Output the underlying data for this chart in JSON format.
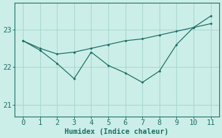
{
  "xlabel": "Humidex (Indice chaleur)",
  "background_color": "#cceee8",
  "grid_color": "#aad8d0",
  "line_color": "#1a6e64",
  "x": [
    0,
    1,
    2,
    3,
    4,
    5,
    6,
    7,
    8,
    9,
    10,
    11
  ],
  "y_zigzag": [
    22.7,
    22.45,
    22.1,
    21.7,
    22.4,
    22.05,
    21.85,
    21.6,
    21.9,
    22.6,
    23.05,
    23.35
  ],
  "y_trend": [
    22.7,
    22.5,
    22.35,
    22.4,
    22.5,
    22.6,
    22.7,
    22.75,
    22.85,
    22.95,
    23.05,
    23.15
  ],
  "ylim": [
    20.7,
    23.7
  ],
  "xlim": [
    -0.5,
    11.5
  ],
  "yticks": [
    21,
    22,
    23
  ],
  "xticks": [
    0,
    1,
    2,
    3,
    4,
    5,
    6,
    7,
    8,
    9,
    10,
    11
  ],
  "font_size": 7.5
}
